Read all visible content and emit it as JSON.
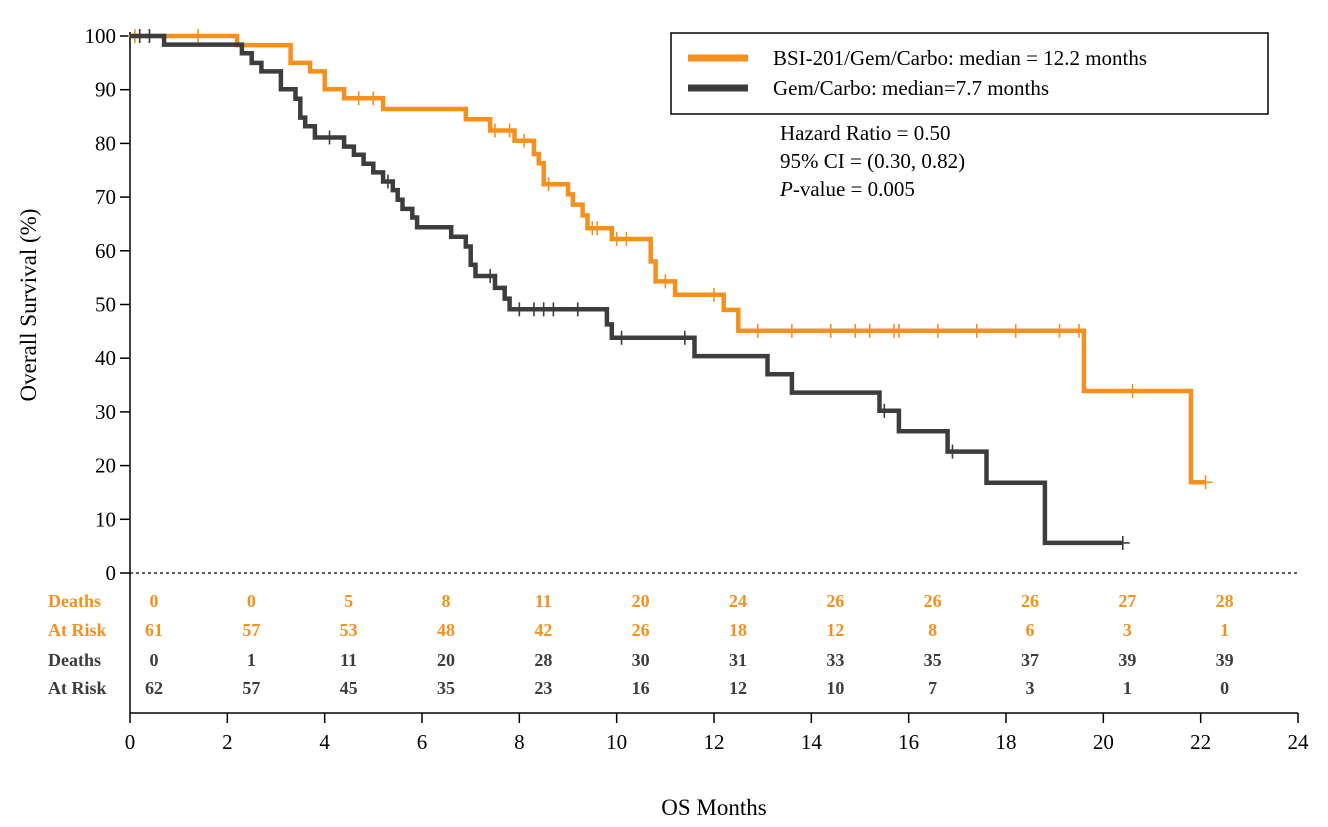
{
  "chart_data": {
    "type": "line",
    "xlabel": "OS Months",
    "ylabel": "Overall Survival (%)",
    "xlim": [
      0,
      24
    ],
    "ylim": [
      0,
      100
    ],
    "x_ticks": [
      0,
      2,
      4,
      6,
      8,
      10,
      12,
      14,
      16,
      18,
      20,
      22,
      24
    ],
    "y_ticks": [
      0,
      10,
      20,
      30,
      40,
      50,
      60,
      70,
      80,
      90,
      100
    ],
    "legend_position": "top-right",
    "colors": {
      "orange": "#F5901E",
      "gray": "#3D3D3D"
    },
    "series": [
      {
        "name": "BSI-201/Gem/Carbo: median = 12.2 months",
        "color": "#F5901E",
        "steps": [
          [
            0,
            100
          ],
          [
            2.2,
            100
          ],
          [
            2.2,
            98.3
          ],
          [
            3.3,
            98.3
          ],
          [
            3.3,
            95
          ],
          [
            3.7,
            95
          ],
          [
            3.7,
            93.4
          ],
          [
            4,
            93.4
          ],
          [
            4,
            90.1
          ],
          [
            4.4,
            90.1
          ],
          [
            4.4,
            88.4
          ],
          [
            5.2,
            88.4
          ],
          [
            5.2,
            86.4
          ],
          [
            6.9,
            86.4
          ],
          [
            6.9,
            84.5
          ],
          [
            7.4,
            84.5
          ],
          [
            7.4,
            82.4
          ],
          [
            7.9,
            82.4
          ],
          [
            7.9,
            80.5
          ],
          [
            8.3,
            80.5
          ],
          [
            8.3,
            78
          ],
          [
            8.4,
            78
          ],
          [
            8.4,
            76.3
          ],
          [
            8.5,
            76.3
          ],
          [
            8.5,
            72.4
          ],
          [
            9,
            72.4
          ],
          [
            9,
            70.5
          ],
          [
            9.1,
            70.5
          ],
          [
            9.1,
            68.6
          ],
          [
            9.3,
            68.6
          ],
          [
            9.3,
            66.6
          ],
          [
            9.4,
            66.6
          ],
          [
            9.4,
            64.2
          ],
          [
            9.9,
            64.2
          ],
          [
            9.9,
            62.2
          ],
          [
            10.7,
            62.2
          ],
          [
            10.7,
            58
          ],
          [
            10.8,
            58
          ],
          [
            10.8,
            54.3
          ],
          [
            11.2,
            54.3
          ],
          [
            11.2,
            51.8
          ],
          [
            12.2,
            51.8
          ],
          [
            12.2,
            49
          ],
          [
            12.5,
            49
          ],
          [
            12.5,
            45.1
          ],
          [
            19.6,
            45.1
          ],
          [
            19.6,
            33.9
          ],
          [
            21.8,
            33.9
          ],
          [
            21.8,
            16.9
          ],
          [
            22.1,
            16.9
          ]
        ],
        "censored": [
          [
            0.1,
            100
          ],
          [
            0.2,
            100
          ],
          [
            0.4,
            100
          ],
          [
            1.4,
            100
          ],
          [
            4.7,
            88.4
          ],
          [
            5,
            88.4
          ],
          [
            7.5,
            82.4
          ],
          [
            7.8,
            82.4
          ],
          [
            8.1,
            80.5
          ],
          [
            8.6,
            72.4
          ],
          [
            9.5,
            64.2
          ],
          [
            9.6,
            64.2
          ],
          [
            10,
            62.2
          ],
          [
            10.2,
            62.2
          ],
          [
            11,
            54.3
          ],
          [
            12,
            51.8
          ],
          [
            12.9,
            45.1
          ],
          [
            13.6,
            45.1
          ],
          [
            14.4,
            45.1
          ],
          [
            14.9,
            45.1
          ],
          [
            15.2,
            45.1
          ],
          [
            15.7,
            45.1
          ],
          [
            15.8,
            45.1
          ],
          [
            16.6,
            45.1
          ],
          [
            17.4,
            45.1
          ],
          [
            18.2,
            45.1
          ],
          [
            19.1,
            45.1
          ],
          [
            19.5,
            45.1
          ],
          [
            20.6,
            33.9
          ],
          [
            22.1,
            16.9
          ]
        ]
      },
      {
        "name": "Gem/Carbo: median=7.7 months",
        "color": "#3D3D3D",
        "steps": [
          [
            0,
            100
          ],
          [
            0.7,
            100
          ],
          [
            0.7,
            98.4
          ],
          [
            2.3,
            98.4
          ],
          [
            2.3,
            96.8
          ],
          [
            2.5,
            96.8
          ],
          [
            2.5,
            95
          ],
          [
            2.7,
            95
          ],
          [
            2.7,
            93.4
          ],
          [
            3.1,
            93.4
          ],
          [
            3.1,
            90.1
          ],
          [
            3.4,
            90.1
          ],
          [
            3.4,
            88.3
          ],
          [
            3.5,
            88.3
          ],
          [
            3.5,
            84.8
          ],
          [
            3.6,
            84.8
          ],
          [
            3.6,
            83.2
          ],
          [
            3.8,
            83.2
          ],
          [
            3.8,
            81.1
          ],
          [
            4.4,
            81.1
          ],
          [
            4.4,
            79.4
          ],
          [
            4.6,
            79.4
          ],
          [
            4.6,
            77.9
          ],
          [
            4.8,
            77.9
          ],
          [
            4.8,
            76.2
          ],
          [
            5,
            76.2
          ],
          [
            5,
            74.6
          ],
          [
            5.2,
            74.6
          ],
          [
            5.2,
            72.9
          ],
          [
            5.4,
            72.9
          ],
          [
            5.4,
            71.3
          ],
          [
            5.5,
            71.3
          ],
          [
            5.5,
            69.5
          ],
          [
            5.6,
            69.5
          ],
          [
            5.6,
            67.8
          ],
          [
            5.8,
            67.8
          ],
          [
            5.8,
            66.2
          ],
          [
            5.9,
            66.2
          ],
          [
            5.9,
            64.4
          ],
          [
            6.6,
            64.4
          ],
          [
            6.6,
            62.6
          ],
          [
            6.9,
            62.6
          ],
          [
            6.9,
            60.8
          ],
          [
            7,
            60.8
          ],
          [
            7,
            57.4
          ],
          [
            7.1,
            57.4
          ],
          [
            7.1,
            55.3
          ],
          [
            7.5,
            55.3
          ],
          [
            7.5,
            53.1
          ],
          [
            7.7,
            53.1
          ],
          [
            7.7,
            51.1
          ],
          [
            7.8,
            51.1
          ],
          [
            7.8,
            49.1
          ],
          [
            9.8,
            49.1
          ],
          [
            9.8,
            46.3
          ],
          [
            9.9,
            46.3
          ],
          [
            9.9,
            43.8
          ],
          [
            11.6,
            43.8
          ],
          [
            11.6,
            40.4
          ],
          [
            13.1,
            40.4
          ],
          [
            13.1,
            37
          ],
          [
            13.6,
            37
          ],
          [
            13.6,
            33.6
          ],
          [
            15.4,
            33.6
          ],
          [
            15.4,
            30.2
          ],
          [
            15.8,
            30.2
          ],
          [
            15.8,
            26.4
          ],
          [
            16.8,
            26.4
          ],
          [
            16.8,
            22.6
          ],
          [
            17.6,
            22.6
          ],
          [
            17.6,
            16.8
          ],
          [
            18.8,
            16.8
          ],
          [
            18.8,
            5.6
          ],
          [
            20.4,
            5.6
          ]
        ],
        "censored": [
          [
            0.2,
            100
          ],
          [
            0.4,
            100
          ],
          [
            4.1,
            81.1
          ],
          [
            5.3,
            72.9
          ],
          [
            7.4,
            55.3
          ],
          [
            8,
            49.1
          ],
          [
            8.3,
            49.1
          ],
          [
            8.5,
            49.1
          ],
          [
            8.7,
            49.1
          ],
          [
            9.2,
            49.1
          ],
          [
            10.1,
            43.8
          ],
          [
            11.4,
            43.8
          ],
          [
            15.5,
            30.2
          ],
          [
            16.9,
            22.6
          ],
          [
            20.4,
            5.6
          ]
        ]
      }
    ],
    "annotations": {
      "hazard_ratio": "Hazard Ratio = 0.50",
      "ci": "95% CI = (0.30, 0.82)",
      "p_prefix": "P",
      "p_value": "-value = 0.005"
    },
    "risk_table": {
      "months": [
        0,
        2,
        4,
        6,
        8,
        10,
        12,
        14,
        16,
        18,
        20,
        22
      ],
      "rows": [
        {
          "label": "Deaths",
          "color": "#F5901E",
          "values": [
            "0",
            "0",
            "5",
            "8",
            "11",
            "20",
            "24",
            "26",
            "26",
            "26",
            "27",
            "28"
          ]
        },
        {
          "label": "At Risk",
          "color": "#F5901E",
          "values": [
            "61",
            "57",
            "53",
            "48",
            "42",
            "26",
            "18",
            "12",
            "8",
            "6",
            "3",
            "1"
          ]
        },
        {
          "label": "Deaths",
          "color": "#3D3D3D",
          "values": [
            "0",
            "1",
            "11",
            "20",
            "28",
            "30",
            "31",
            "33",
            "35",
            "37",
            "39",
            "39"
          ]
        },
        {
          "label": "At Risk",
          "color": "#3D3D3D",
          "values": [
            "62",
            "57",
            "45",
            "35",
            "23",
            "16",
            "12",
            "10",
            "7",
            "3",
            "1",
            "0"
          ]
        }
      ]
    }
  }
}
